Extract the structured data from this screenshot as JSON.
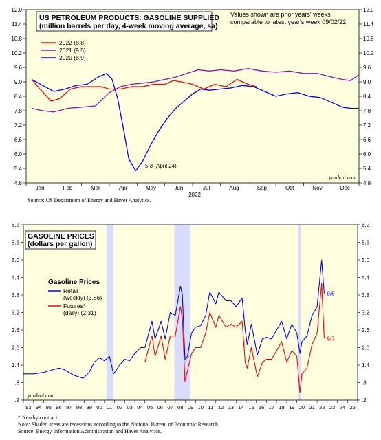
{
  "chart_data": [
    {
      "type": "line",
      "title": "US PETROLEUM PRODUCTS: GASOLINE SUPPLIED",
      "subtitle": "(million barrels per day, 4-week moving average, sa)",
      "note": "Values shown are prior years' weeks comparable to latest year's week 09/02/22",
      "xlabel": "2022",
      "ylim": [
        4.8,
        12.0
      ],
      "yticks": [
        4.8,
        5.4,
        6.0,
        6.6,
        7.2,
        7.8,
        8.4,
        9.0,
        9.6,
        10.2,
        10.8,
        11.4,
        12.0
      ],
      "ytick_labels": [
        "4.8",
        "5.4",
        "6.0",
        "6.6",
        "7.2",
        "7.8",
        "8.4",
        "9.0",
        "9.6",
        "10.2",
        "10.8",
        "11.4",
        "12.0"
      ],
      "months": [
        "Jan",
        "Feb",
        "Mar",
        "Apr",
        "May",
        "Jun",
        "Jul",
        "Aug",
        "Sep",
        "Oct",
        "Nov",
        "Dec"
      ],
      "grid": false,
      "legend_placement": "top-left",
      "annotation": "5.3 (April 24)",
      "watermark": "yardeni.com",
      "source": "Source: US Department of Energy and Haver Analytics.",
      "series": [
        {
          "name": "2022 (8.8)",
          "color": "#ff0000",
          "x": [
            0.2,
            0.5,
            0.9,
            1.2,
            1.6,
            2.0,
            2.3,
            2.7,
            3.0,
            3.4,
            3.8,
            4.2,
            4.6,
            5.0,
            5.3,
            5.6,
            6.0,
            6.4,
            6.8,
            7.2,
            7.6,
            8.0,
            8.3
          ],
          "y": [
            9.1,
            8.7,
            8.2,
            8.3,
            8.7,
            8.8,
            8.8,
            8.8,
            8.7,
            8.7,
            8.8,
            8.8,
            8.9,
            8.9,
            9.05,
            9.0,
            8.9,
            8.7,
            8.9,
            8.8,
            9.1,
            8.9,
            8.8
          ]
        },
        {
          "name": "2021 (9.5)",
          "color": "#8a1a9a",
          "x": [
            0.2,
            0.6,
            1.0,
            1.5,
            2.0,
            2.5,
            3.0,
            3.4,
            3.8,
            4.2,
            4.6,
            5.0,
            5.4,
            5.8,
            6.2,
            6.6,
            7.0,
            7.5,
            8.0,
            8.5,
            9.0,
            9.5,
            10.0,
            10.5,
            11.0,
            11.4,
            11.7,
            12.0
          ],
          "y": [
            7.9,
            7.8,
            7.75,
            7.9,
            7.95,
            8.0,
            8.55,
            8.8,
            8.9,
            8.95,
            9.0,
            9.1,
            9.2,
            9.35,
            9.5,
            9.45,
            9.5,
            9.45,
            9.55,
            9.45,
            9.4,
            9.45,
            9.35,
            9.35,
            9.2,
            9.1,
            9.05,
            9.3
          ]
        },
        {
          "name": "2020 (8.9)",
          "color": "#0000ff",
          "x": [
            0.2,
            0.6,
            1.0,
            1.4,
            1.8,
            2.2,
            2.6,
            2.9,
            3.1,
            3.3,
            3.5,
            3.7,
            3.95,
            4.2,
            4.5,
            4.8,
            5.1,
            5.4,
            5.7,
            6.0,
            6.3,
            6.6,
            7.0,
            7.4,
            7.8,
            8.2,
            8.6,
            9.0,
            9.4,
            9.8,
            10.2,
            10.6,
            11.0,
            11.4,
            11.7,
            12.0
          ],
          "y": [
            9.1,
            8.85,
            8.6,
            8.7,
            8.85,
            8.9,
            9.2,
            9.35,
            9.1,
            8.3,
            7.1,
            5.8,
            5.3,
            5.7,
            6.4,
            7.0,
            7.5,
            7.9,
            8.2,
            8.5,
            8.7,
            8.65,
            8.7,
            8.75,
            8.85,
            8.8,
            8.6,
            8.4,
            8.5,
            8.55,
            8.4,
            8.35,
            8.15,
            7.95,
            7.9,
            7.9
          ]
        }
      ]
    },
    {
      "type": "line",
      "title": "GASOLINE PRICES",
      "subtitle": "(dollars per gallon)",
      "legend_title": "Gasoline Prices",
      "ylim": [
        0.2,
        6.2
      ],
      "yticks": [
        0.2,
        0.8,
        1.4,
        2.0,
        2.6,
        3.2,
        3.8,
        4.4,
        5.0,
        5.6,
        6.2
      ],
      "ytick_labels": [
        ".2",
        ".8",
        "1.4",
        "2.0",
        "2.6",
        "3.2",
        "3.8",
        "4.4",
        "5.0",
        "5.6",
        "6.2"
      ],
      "xlim": [
        1993,
        2026
      ],
      "xtick_labels": [
        "93",
        "94",
        "95",
        "96",
        "97",
        "98",
        "99",
        "00",
        "01",
        "02",
        "03",
        "04",
        "05",
        "06",
        "07",
        "08",
        "09",
        "10",
        "11",
        "12",
        "13",
        "14",
        "15",
        "16",
        "17",
        "18",
        "19",
        "20",
        "21",
        "22",
        "23",
        "24",
        "25"
      ],
      "recessions": [
        [
          2001.2,
          2001.9
        ],
        [
          2007.9,
          2009.5
        ],
        [
          2020.1,
          2020.4
        ]
      ],
      "grid": false,
      "legend_placement": "upper-left",
      "watermark": "yardeni.com",
      "series": [
        {
          "name": "Retail",
          "sublabel": "(weekly) (3.86)",
          "end_label": "9/5",
          "color": "#0000ff",
          "x": [
            1993.0,
            1994.0,
            1995.0,
            1996.0,
            1996.5,
            1997.0,
            1998.0,
            1998.9,
            1999.5,
            2000.0,
            2000.5,
            2001.0,
            2001.5,
            2001.9,
            2002.5,
            2003.0,
            2003.5,
            2004.0,
            2004.6,
            2005.0,
            2005.7,
            2006.0,
            2006.6,
            2007.0,
            2007.5,
            2008.0,
            2008.5,
            2008.7,
            2008.95,
            2009.2,
            2009.6,
            2010.0,
            2010.5,
            2011.0,
            2011.4,
            2012.0,
            2012.3,
            2013.0,
            2013.5,
            2014.0,
            2014.6,
            2014.9,
            2015.1,
            2015.5,
            2016.1,
            2016.6,
            2017.0,
            2017.5,
            2018.0,
            2018.5,
            2019.0,
            2019.5,
            2020.0,
            2020.3,
            2020.5,
            2021.0,
            2021.5,
            2022.0,
            2022.45,
            2022.7
          ],
          "y": [
            1.1,
            1.1,
            1.15,
            1.25,
            1.3,
            1.25,
            1.05,
            0.95,
            1.15,
            1.5,
            1.65,
            1.55,
            1.7,
            1.1,
            1.4,
            1.6,
            1.55,
            1.8,
            2.0,
            2.0,
            2.9,
            2.3,
            2.9,
            2.3,
            3.2,
            3.1,
            4.1,
            3.8,
            1.6,
            1.7,
            2.5,
            2.7,
            2.75,
            3.1,
            3.9,
            3.5,
            3.9,
            3.6,
            3.6,
            3.4,
            3.7,
            2.6,
            2.1,
            2.8,
            1.75,
            2.3,
            2.35,
            2.3,
            2.6,
            2.9,
            2.3,
            2.8,
            2.5,
            1.8,
            2.2,
            2.4,
            3.1,
            3.4,
            5.0,
            3.86
          ]
        },
        {
          "name": "Futures*",
          "sublabel": "(daily) (2.31)",
          "end_label": "9/7",
          "color": "#ff0000",
          "x": [
            2005.0,
            2005.7,
            2006.0,
            2006.6,
            2007.0,
            2007.5,
            2008.0,
            2008.5,
            2008.7,
            2008.95,
            2009.2,
            2009.6,
            2010.0,
            2010.5,
            2011.0,
            2011.4,
            2012.0,
            2012.3,
            2013.0,
            2013.5,
            2014.0,
            2014.6,
            2014.9,
            2015.1,
            2015.5,
            2016.1,
            2016.6,
            2017.0,
            2017.5,
            2018.0,
            2018.5,
            2019.0,
            2019.5,
            2020.0,
            2020.3,
            2020.5,
            2021.0,
            2021.5,
            2022.0,
            2022.45,
            2022.7
          ],
          "y": [
            1.5,
            2.4,
            1.7,
            2.4,
            1.6,
            2.4,
            2.4,
            3.4,
            3.0,
            0.85,
            1.2,
            1.8,
            2.0,
            2.0,
            2.5,
            3.2,
            2.7,
            3.1,
            2.7,
            2.8,
            2.7,
            2.9,
            1.5,
            1.3,
            2.0,
            1.0,
            1.5,
            1.6,
            1.6,
            1.9,
            2.2,
            1.5,
            1.9,
            1.7,
            0.45,
            1.1,
            1.3,
            2.1,
            2.5,
            4.2,
            2.31
          ]
        }
      ],
      "notes": [
        "* Nearby contract.",
        "Note: Shaded areas are recessions according to the National Bureau of Economic Research.",
        "Source: Energy Information Administration and Haver Analytics."
      ]
    }
  ]
}
